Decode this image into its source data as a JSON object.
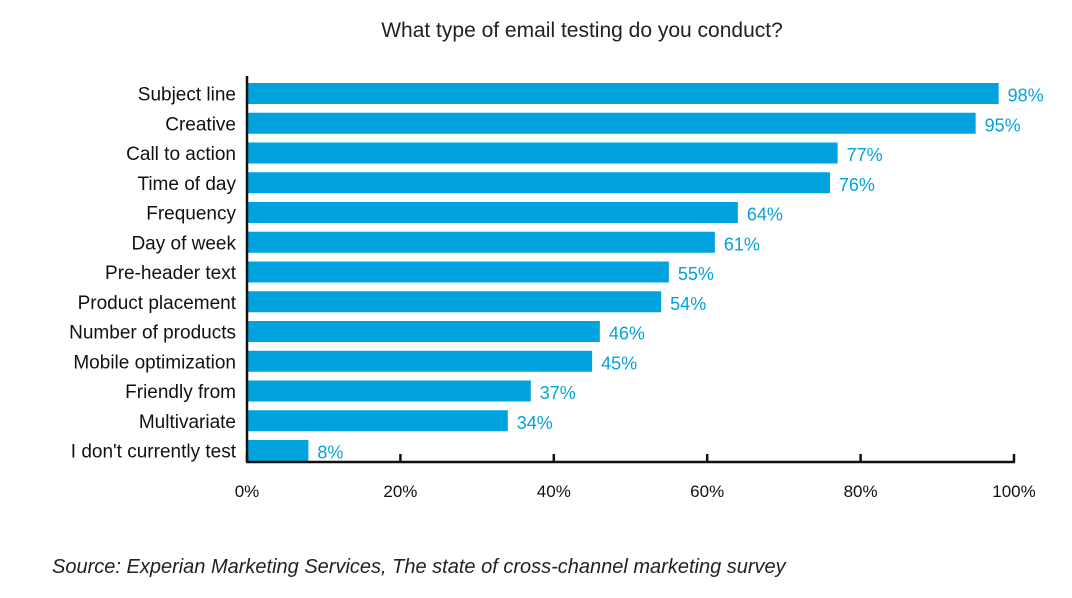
{
  "chart_data": {
    "type": "bar",
    "orientation": "horizontal",
    "title": "What type of email testing do you conduct?",
    "categories": [
      "Subject line",
      "Creative",
      "Call to action",
      "Time of day",
      "Frequency",
      "Day of week",
      "Pre-header text",
      "Product placement",
      "Number of products",
      "Mobile optimization",
      "Friendly from",
      "Multivariate",
      "I don't currently test"
    ],
    "values": [
      98,
      95,
      77,
      76,
      64,
      61,
      55,
      54,
      46,
      45,
      37,
      34,
      8
    ],
    "value_labels": [
      "98%",
      "95%",
      "77%",
      "76%",
      "64%",
      "61%",
      "55%",
      "54%",
      "46%",
      "45%",
      "37%",
      "34%",
      "8%"
    ],
    "xlim": [
      0,
      100
    ],
    "xticks": [
      0,
      20,
      40,
      60,
      80,
      100
    ],
    "xtick_labels": [
      "0%",
      "20%",
      "40%",
      "60%",
      "80%",
      "100%"
    ],
    "xlabel": "",
    "ylabel": "",
    "bar_color": "#00a3dd",
    "label_color": "#00a3dd",
    "axis_color": "#111111"
  },
  "source": "Source: Experian Marketing Services, The state of cross-channel marketing survey"
}
